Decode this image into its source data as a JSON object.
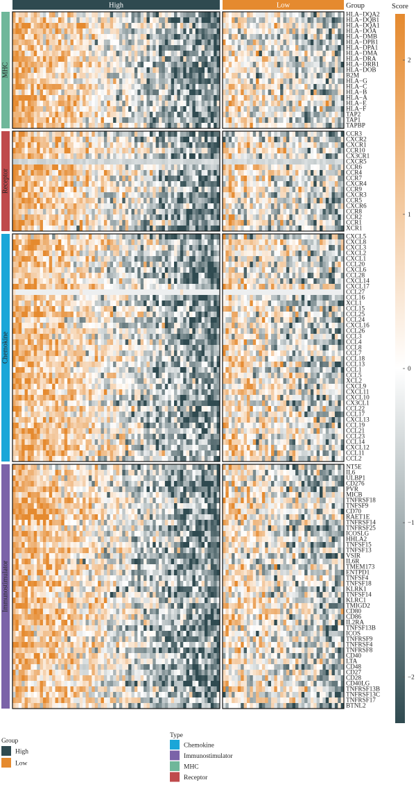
{
  "chart_data": {
    "type": "heatmap",
    "column_groups": [
      {
        "name": "High",
        "color": "#2f4a50",
        "n_columns": 68
      },
      {
        "name": "Low",
        "color": "#e58a2f",
        "n_columns": 40
      }
    ],
    "row_groups": [
      {
        "name": "MHC",
        "color": "#6fb79a",
        "genes": [
          "HLA−DQA2",
          "HLA−DQB1",
          "HLA−DQA1",
          "HLA−DOA",
          "HLA−DMB",
          "HLA−DPB1",
          "HLA−DPA1",
          "HLA−DMA",
          "HLA−DRA",
          "HLA−DRB1",
          "HLA−DOB",
          "B2M",
          "HLA−G",
          "HLA−C",
          "HLA−B",
          "HLA−A",
          "HLA−E",
          "HLA−F",
          "TAP2",
          "TAP1",
          "TAPBP"
        ]
      },
      {
        "name": "Receptor",
        "color": "#bf4a4c",
        "genes": [
          "CCR3",
          "CXCR2",
          "CXCR1",
          "CCR10",
          "CX3CR1",
          "CXCR5",
          "CCR6",
          "CCR4",
          "CCR7",
          "CXCR4",
          "CCR9",
          "CXCR3",
          "CCR5",
          "CXCR6",
          "CCR8",
          "CCR2",
          "CCR1",
          "XCR1"
        ]
      },
      {
        "name": "Chemokine",
        "color": "#1aa6d8",
        "genes": [
          "CXCL5",
          "CXCL8",
          "CXCL3",
          "CXCL2",
          "CXCL1",
          "CCL20",
          "CXCL6",
          "CCL28",
          "CXCL14",
          "CXCL17",
          "CCL27",
          "CCL16",
          "XCL1",
          "CCL15",
          "CCL25",
          "CCL24",
          "CXCL16",
          "CCL26",
          "CCL3",
          "CCL4",
          "CCL8",
          "CCL7",
          "CCL18",
          "CCL13",
          "CCL1",
          "CCL5",
          "XCL2",
          "CXCL9",
          "CXCL11",
          "CXCL10",
          "CX3CL1",
          "CCL22",
          "CCL17",
          "CXCL13",
          "CCL19",
          "CCL21",
          "CCL23",
          "CCL14",
          "CXCL12",
          "CCL11",
          "CCL2"
        ]
      },
      {
        "name": "Immunostimulator",
        "color": "#7b63a8",
        "genes": [
          "NT5E",
          "IL6",
          "ULBP1",
          "CD276",
          "PVR",
          "MICB",
          "TNFRSF18",
          "TNFSF9",
          "CD70",
          "RAET1E",
          "TNFRSF14",
          "TNFRSF25",
          "ICOSLG",
          "HHLA2",
          "TNFSF15",
          "TNFSF13",
          "VSIR",
          "IL6R",
          "TMEM173",
          "ENTPD1",
          "TNFSF4",
          "TNFSF18",
          "KLRK1",
          "TNFSF14",
          "KLRC1",
          "TMIGD2",
          "CD80",
          "CD86",
          "IL2RA",
          "TNFSF13B",
          "ICOS",
          "TNFRSF9",
          "TNFRSF4",
          "TNFRSF8",
          "CD40",
          "LTA",
          "CD48",
          "CD27",
          "CD28",
          "CD40LG",
          "TNFRSF13B",
          "TNFRSF13C",
          "TNFRSF17",
          "BTNL2"
        ]
      }
    ],
    "colorbar": {
      "title": "Score",
      "range": [
        -2.3,
        2.3
      ],
      "ticks": [
        "2",
        "1",
        "0",
        "−1",
        "−2"
      ],
      "tick_values": [
        2,
        1,
        0,
        -1,
        -2
      ],
      "low_color": "#2f4a50",
      "mid_color": "#ffffff",
      "high_color": "#e58a2f"
    },
    "annotation_header": "Group",
    "legends": {
      "group": {
        "title": "Group",
        "items": [
          {
            "label": "High",
            "color": "#2f4a50"
          },
          {
            "label": "Low",
            "color": "#e58a2f"
          }
        ]
      },
      "type": {
        "title": "Type",
        "items": [
          {
            "label": "Chemokine",
            "color": "#1aa6d8"
          },
          {
            "label": "Immunostimulator",
            "color": "#7b63a8"
          },
          {
            "label": "MHC",
            "color": "#6fb79a"
          },
          {
            "label": "Receptor",
            "color": "#bf4a4c"
          }
        ]
      }
    },
    "legend_position": "bottom",
    "cell_values_note": "Individual cell values are not legible; heatmap shows higher scores (orange) predominantly in the left of the High group and lower scores (dark slate) toward the right of the High group."
  }
}
